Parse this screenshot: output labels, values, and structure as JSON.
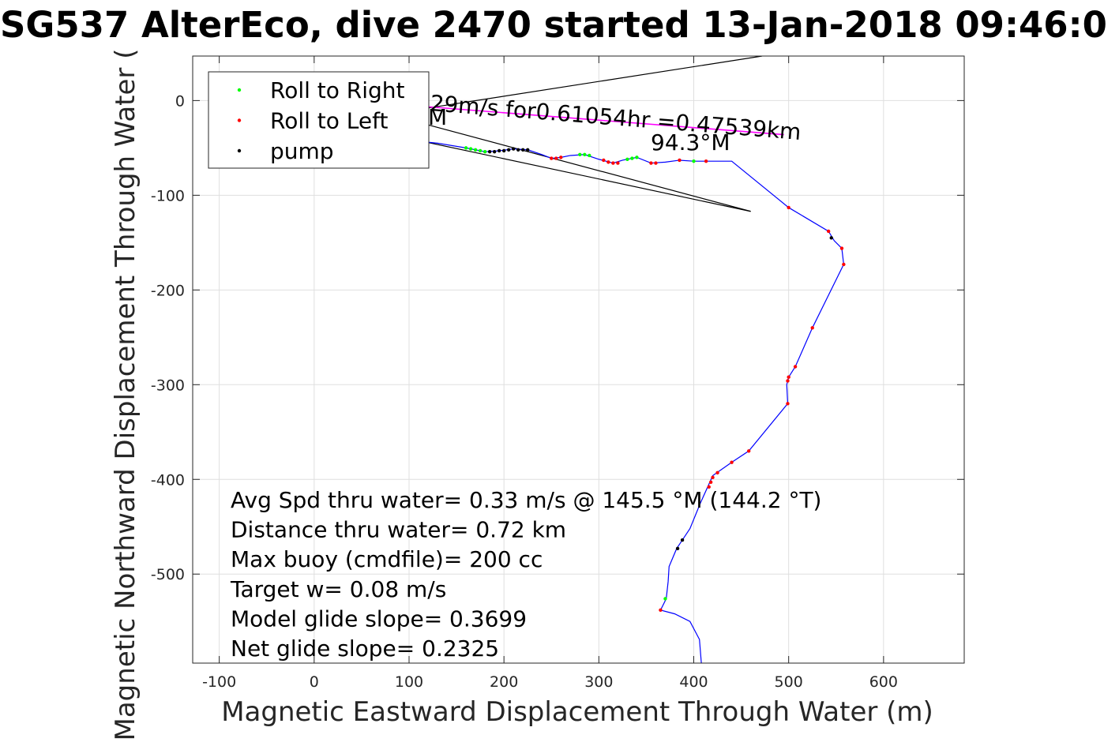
{
  "chart_data": {
    "type": "line",
    "title": "SG537 AlterEco, dive 2470 started 13-Jan-2018 09:46:0",
    "xlabel": "Magnetic Eastward Displacement Through Water (m)",
    "ylabel": "Magnetic Northward Displacement Through Water (",
    "xlim": [
      -128,
      685
    ],
    "ylim": [
      -594,
      47
    ],
    "xticks": [
      -100,
      0,
      100,
      200,
      300,
      400,
      500,
      600
    ],
    "yticks": [
      0,
      -100,
      -200,
      -300,
      -400,
      -500
    ],
    "grid": true,
    "legend_position": "top-left",
    "legend": [
      "Roll to Right",
      "Roll to Left",
      "pump"
    ],
    "colors": {
      "track": "#0000ff",
      "roll_right": "#00ff00",
      "roll_left": "#ff0000",
      "pump": "#000000",
      "current_vector": "#ff00ff",
      "reference_line": "#000000"
    },
    "series": [
      {
        "name": "track",
        "points": [
          [
            100,
            -42
          ],
          [
            130,
            -45
          ],
          [
            160,
            -50
          ],
          [
            180,
            -54
          ],
          [
            195,
            -53
          ],
          [
            210,
            -51
          ],
          [
            225,
            -52
          ],
          [
            240,
            -57
          ],
          [
            250,
            -61
          ],
          [
            260,
            -60
          ],
          [
            270,
            -58
          ],
          [
            285,
            -57
          ],
          [
            300,
            -62
          ],
          [
            315,
            -66
          ],
          [
            325,
            -63
          ],
          [
            340,
            -60
          ],
          [
            355,
            -66
          ],
          [
            370,
            -65
          ],
          [
            385,
            -63
          ],
          [
            400,
            -64
          ],
          [
            440,
            -64
          ],
          [
            500,
            -113
          ],
          [
            542,
            -138
          ],
          [
            548,
            -148
          ],
          [
            556,
            -156
          ],
          [
            558,
            -173
          ],
          [
            525,
            -240
          ],
          [
            507,
            -281
          ],
          [
            500,
            -292
          ],
          [
            498,
            -300
          ],
          [
            499,
            -320
          ],
          [
            458,
            -370
          ],
          [
            440,
            -382
          ],
          [
            420,
            -396
          ],
          [
            416,
            -405
          ],
          [
            407,
            -425
          ],
          [
            396,
            -452
          ],
          [
            388,
            -464
          ],
          [
            382,
            -473
          ],
          [
            374,
            -492
          ],
          [
            373,
            -508
          ],
          [
            371,
            -526
          ],
          [
            365,
            -538
          ],
          [
            380,
            -542
          ],
          [
            396,
            -550
          ],
          [
            406,
            -569
          ],
          [
            408,
            -594
          ]
        ]
      },
      {
        "name": "Roll to Right",
        "points": [
          [
            160,
            -50
          ],
          [
            165,
            -51
          ],
          [
            170,
            -52
          ],
          [
            175,
            -53
          ],
          [
            180,
            -54
          ],
          [
            280,
            -57
          ],
          [
            285,
            -57
          ],
          [
            290,
            -58
          ],
          [
            330,
            -62
          ],
          [
            335,
            -61
          ],
          [
            340,
            -60
          ],
          [
            400,
            -64
          ],
          [
            370,
            -526
          ]
        ]
      },
      {
        "name": "Roll to Left",
        "points": [
          [
            250,
            -61
          ],
          [
            255,
            -61
          ],
          [
            260,
            -60
          ],
          [
            305,
            -63
          ],
          [
            310,
            -65
          ],
          [
            315,
            -66
          ],
          [
            320,
            -66
          ],
          [
            355,
            -66
          ],
          [
            360,
            -66
          ],
          [
            385,
            -63
          ],
          [
            413,
            -64
          ],
          [
            500,
            -113
          ],
          [
            542,
            -138
          ],
          [
            556,
            -156
          ],
          [
            558,
            -173
          ],
          [
            525,
            -240
          ],
          [
            507,
            -281
          ],
          [
            500,
            -292
          ],
          [
            499,
            -296
          ],
          [
            499,
            -320
          ],
          [
            458,
            -370
          ],
          [
            440,
            -382
          ],
          [
            425,
            -393
          ],
          [
            420,
            -398
          ],
          [
            418,
            -403
          ],
          [
            416,
            -408
          ],
          [
            365,
            -538
          ]
        ]
      },
      {
        "name": "pump",
        "points": [
          [
            185,
            -54
          ],
          [
            190,
            -54
          ],
          [
            195,
            -53
          ],
          [
            200,
            -53
          ],
          [
            205,
            -52
          ],
          [
            210,
            -51
          ],
          [
            215,
            -52
          ],
          [
            220,
            -52
          ],
          [
            225,
            -52
          ],
          [
            545,
            -145
          ],
          [
            388,
            -464
          ],
          [
            383,
            -473
          ]
        ]
      },
      {
        "name": "current_vector",
        "points": [
          [
            100,
            -5
          ],
          [
            495,
            -36
          ]
        ]
      },
      {
        "name": "reference_lines",
        "segments": [
          [
            [
              100,
              -11
            ],
            [
              472,
              47
            ]
          ],
          [
            [
              110,
              -23
            ],
            [
              460,
              -117
            ]
          ],
          [
            [
              100,
              -40
            ],
            [
              460,
              -117
            ]
          ]
        ]
      }
    ],
    "annotations": {
      "vector_label": "29m/s for0.61054hr =0.47539km",
      "heading_label": "94.3°M",
      "heading_label_partial": "M"
    },
    "stats": [
      "Avg Spd thru water=  0.33 m/s @ 145.5 °M (144.2 °T)",
      "Distance thru water=  0.72 km",
      "Max buoy (cmdfile)= 200 cc",
      "Target w= 0.08 m/s",
      "Model glide slope= 0.3699",
      "Net glide slope= 0.2325"
    ]
  }
}
